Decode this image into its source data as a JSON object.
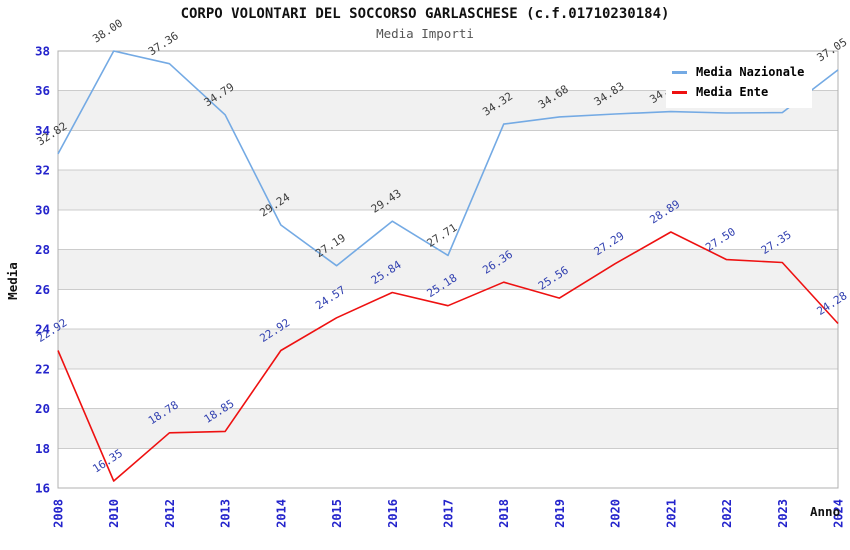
{
  "header": {
    "title": "CORPO VOLONTARI DEL SOCCORSO GARLASCHESE (c.f.01710230184)",
    "subtitle": "Media Importi"
  },
  "axis": {
    "x_title": "Anno",
    "y_title": "Media"
  },
  "legend": {
    "position": "top-right",
    "items": [
      {
        "label": "Media Nazionale",
        "color": "#74aae4"
      },
      {
        "label": "Media Ente",
        "color": "#ee1111"
      }
    ]
  },
  "chart_data": {
    "type": "line",
    "title": "CORPO VOLONTARI DEL SOCCORSO GARLASCHESE (c.f.01710230184)",
    "subtitle": "Media Importi",
    "xlabel": "Anno",
    "ylabel": "Media",
    "categories": [
      "2008",
      "2010",
      "2012",
      "2013",
      "2014",
      "2015",
      "2016",
      "2017",
      "2018",
      "2019",
      "2020",
      "2021",
      "2022",
      "2023",
      "2024"
    ],
    "series": [
      {
        "name": "Media Nazionale",
        "color": "#74aae4",
        "label_color": "#3d3d3d",
        "values": [
          32.82,
          38.0,
          37.36,
          34.79,
          29.24,
          27.19,
          29.43,
          27.71,
          34.32,
          34.68,
          34.83,
          34.95,
          34.88,
          34.9,
          37.05
        ]
      },
      {
        "name": "Media Ente",
        "color": "#ee1111",
        "label_color": "#3140b0",
        "values": [
          22.92,
          16.35,
          18.78,
          18.85,
          22.92,
          24.57,
          25.84,
          25.18,
          26.36,
          25.56,
          27.29,
          28.89,
          27.5,
          27.35,
          24.28
        ]
      }
    ],
    "ylim": [
      16,
      38
    ],
    "ytick_step": 2,
    "grid": true,
    "band_fill": "#f1f1f1",
    "gridline_color": "#cccccc",
    "border_color": "#b0b0b0",
    "tick_label_color": "#2424cc",
    "legend_position": "top-right"
  }
}
